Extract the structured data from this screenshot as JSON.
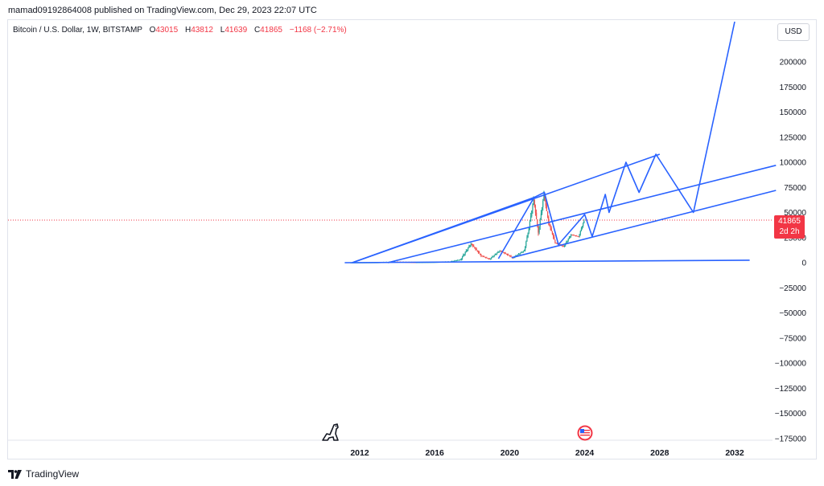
{
  "header": {
    "published_line": "mamad09192864008 published on TradingView.com, Dec 29, 2023 22:07 UTC"
  },
  "legend": {
    "symbol": "Bitcoin / U.S. Dollar, 1W, BITSTAMP",
    "open_label": "O",
    "open_value": "43015",
    "high_label": "H",
    "high_value": "43812",
    "low_label": "L",
    "low_value": "41639",
    "close_label": "C",
    "close_value": "41865",
    "change": "−1168 (−2.71%)"
  },
  "currency_button": "USD",
  "price_tag": {
    "price": "41865",
    "countdown": "2d 2h"
  },
  "footer": {
    "brand": "TradingView"
  },
  "colors": {
    "drawing": "#2962ff",
    "up": "#26a69a",
    "down": "#ef5350",
    "last_price": "#f23645"
  },
  "icons": {
    "dino": "tradingview-dino-icon",
    "flag": "us-flag-event-icon",
    "logo": "tradingview-logo-icon"
  },
  "chart_data": {
    "type": "line",
    "title": "",
    "xlabel": "",
    "ylabel": "",
    "x_ticks": [
      "2012",
      "2016",
      "2020",
      "2024",
      "2028",
      "2032"
    ],
    "y_ticks": [
      "200000",
      "175000",
      "150000",
      "125000",
      "100000",
      "75000",
      "50000",
      "25000",
      "0",
      "−25000",
      "−50000",
      "−75000",
      "−100000",
      "−125000",
      "−150000",
      "−175000"
    ],
    "ylim": [
      -180000,
      220000
    ],
    "xlim": [
      2011.0,
      2034.5
    ],
    "grid": false,
    "last_price": 41865,
    "price_series": {
      "name": "BTCUSD",
      "points": [
        [
          2011.5,
          0
        ],
        [
          2013.0,
          100
        ],
        [
          2013.9,
          800
        ],
        [
          2015.0,
          250
        ],
        [
          2016.0,
          400
        ],
        [
          2016.8,
          900
        ],
        [
          2017.4,
          3000
        ],
        [
          2017.96,
          19000
        ],
        [
          2018.5,
          7000
        ],
        [
          2018.95,
          3500
        ],
        [
          2019.5,
          12000
        ],
        [
          2020.2,
          5000
        ],
        [
          2020.8,
          12000
        ],
        [
          2021.0,
          30000
        ],
        [
          2021.3,
          63000
        ],
        [
          2021.55,
          30000
        ],
        [
          2021.85,
          68000
        ],
        [
          2022.1,
          40000
        ],
        [
          2022.45,
          20000
        ],
        [
          2022.9,
          16000
        ],
        [
          2023.3,
          28000
        ],
        [
          2023.7,
          26000
        ],
        [
          2023.99,
          41865
        ]
      ]
    },
    "drawings": [
      {
        "name": "upper-channel-line",
        "points": [
          [
            2011.6,
            0
          ],
          [
            2021.3,
            65000
          ]
        ]
      },
      {
        "name": "rising-line-1",
        "points": [
          [
            2011.6,
            0
          ],
          [
            2028.0,
            108000
          ]
        ]
      },
      {
        "name": "rising-line-2",
        "points": [
          [
            2013.5,
            0
          ],
          [
            2034.2,
            97000
          ]
        ]
      },
      {
        "name": "rising-line-3",
        "points": [
          [
            2020.1,
            5000
          ],
          [
            2034.2,
            72000
          ]
        ]
      },
      {
        "name": "flat-baseline",
        "points": [
          [
            2011.2,
            0
          ],
          [
            2032.8,
            2500
          ]
        ]
      },
      {
        "name": "projection-path",
        "points": [
          [
            2019.4,
            4000
          ],
          [
            2021.3,
            65000
          ],
          [
            2021.85,
            70000
          ],
          [
            2022.6,
            18000
          ],
          [
            2024.0,
            48000
          ],
          [
            2024.4,
            26000
          ],
          [
            2025.1,
            68000
          ],
          [
            2025.3,
            50000
          ],
          [
            2026.2,
            100000
          ],
          [
            2026.9,
            70000
          ],
          [
            2027.8,
            108000
          ],
          [
            2029.8,
            50000
          ],
          [
            2032.0,
            240000
          ]
        ]
      }
    ]
  }
}
